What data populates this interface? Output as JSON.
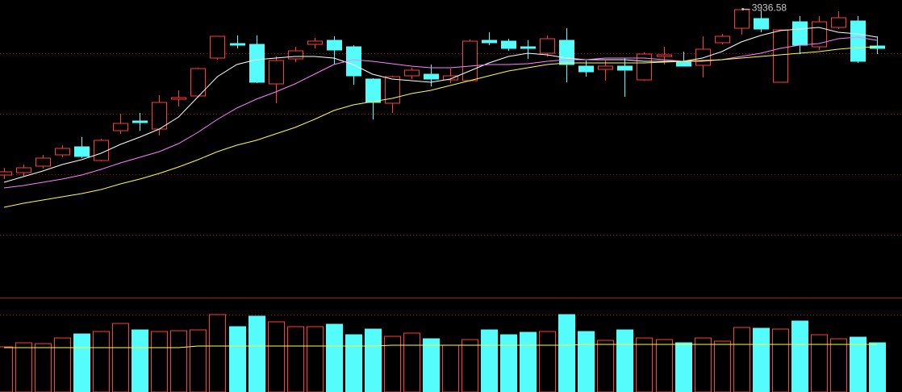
{
  "chart_data": [
    {
      "type": "candlestick",
      "up_color": "#ff3c3c",
      "down_color": "#54fcfc",
      "grid": true,
      "grid_color": "#a01010",
      "ylim": [
        3052.5,
        3965
      ],
      "yticks": [
        3800,
        3612.5,
        3425,
        3237.5
      ],
      "open": [
        3422.5,
        3430,
        3450,
        3485,
        3510,
        3467.5,
        3560,
        3590,
        3565,
        3657.5,
        3667.5,
        3785,
        3830,
        3827.5,
        3705,
        3782.5,
        3827.5,
        3840,
        3820,
        3720,
        3645,
        3730,
        3735,
        3717.5,
        3715,
        3840,
        3837.5,
        3820,
        3800,
        3840,
        3760,
        3750,
        3760,
        3717.5,
        3790,
        3775,
        3762.5,
        3832.5,
        3877.5,
        3907.5,
        3710,
        3897.5,
        3820,
        3880,
        3900,
        3822.5
      ],
      "high": [
        3445,
        3455,
        3485,
        3515,
        3540,
        3535,
        3612.5,
        3615,
        3670,
        3685,
        3755,
        3852.5,
        3855,
        3855,
        3790,
        3820,
        3847.5,
        3852.5,
        3825,
        3722.5,
        3730,
        3755,
        3765,
        3752.5,
        3842.5,
        3865,
        3845,
        3840,
        3855,
        3877.5,
        3777.5,
        3777.5,
        3785,
        3802.5,
        3820,
        3805,
        3852.5,
        3860,
        3936.58,
        3932.5,
        3872.5,
        3915,
        3915,
        3930,
        3915,
        3852.5
      ],
      "low": [
        3410,
        3420,
        3442.5,
        3477.5,
        3475,
        3465,
        3550,
        3560,
        3545,
        3635,
        3662.5,
        3780,
        3815,
        3707.5,
        3645,
        3772.5,
        3815,
        3765,
        3702.5,
        3595,
        3615,
        3720,
        3697.5,
        3707.5,
        3712.5,
        3825,
        3807.5,
        3782.5,
        3790,
        3710,
        3727.5,
        3715,
        3665,
        3715,
        3765,
        3760,
        3725,
        3827.5,
        3857.5,
        3865,
        3710,
        3797.5,
        3810,
        3875,
        3770,
        3797.5
      ],
      "close": [
        3432.5,
        3445,
        3475,
        3505,
        3480,
        3530,
        3582.5,
        3585,
        3647.5,
        3662.5,
        3752.5,
        3852.5,
        3825,
        3710,
        3777.5,
        3807.5,
        3837.5,
        3810,
        3730,
        3647.5,
        3727.5,
        3747.5,
        3720,
        3730,
        3837.5,
        3832.5,
        3815,
        3815,
        3845,
        3765,
        3742.5,
        3760,
        3747.5,
        3797.5,
        3795,
        3760,
        3812.5,
        3852.5,
        3935,
        3875,
        3872.5,
        3825,
        3897.5,
        3910,
        3775,
        3815
      ],
      "lines": [
        {
          "color": "#ffffff",
          "values": [
            3400,
            3417.5,
            3435,
            3455,
            3470,
            3490,
            3517.5,
            3540,
            3565,
            3602.5,
            3665,
            3727.5,
            3765,
            3780,
            3785,
            3790,
            3790,
            3785,
            3765,
            3735,
            3720,
            3715,
            3710,
            3720,
            3745,
            3770,
            3790,
            3800,
            3795,
            3785,
            3780,
            3780,
            3780,
            3775,
            3775,
            3775,
            3785,
            3805,
            3835,
            3855,
            3870,
            3875,
            3880,
            3865,
            3860,
            3850
          ]
        },
        {
          "color": "#ff80ff",
          "values": [
            3382.5,
            3390,
            3400,
            3410,
            3422.5,
            3440,
            3460,
            3477.5,
            3495,
            3520,
            3555,
            3595,
            3630,
            3657.5,
            3680,
            3705,
            3735,
            3765,
            3780,
            3775,
            3767.5,
            3760,
            3755,
            3755,
            3760,
            3765,
            3765,
            3767.5,
            3775,
            3780,
            3780,
            3785,
            3785,
            3785,
            3780,
            3775,
            3775,
            3780,
            3790,
            3800,
            3815,
            3825,
            3830,
            3845,
            3850,
            3840
          ]
        },
        {
          "color": "#ffff40",
          "values": [
            3322.5,
            3335,
            3345,
            3355,
            3365,
            3377.5,
            3395,
            3410,
            3427.5,
            3447.5,
            3470,
            3495,
            3515,
            3530,
            3550,
            3570,
            3595,
            3622.5,
            3640,
            3650,
            3660,
            3675,
            3685,
            3700,
            3715,
            3730,
            3745,
            3755,
            3765,
            3770,
            3770,
            3770,
            3770,
            3770,
            3772.5,
            3775,
            3777.5,
            3780,
            3785,
            3790,
            3795,
            3800,
            3805,
            3812.5,
            3817.5,
            3820
          ]
        }
      ]
    },
    {
      "type": "volume",
      "grid": true,
      "ylim": [
        0,
        116
      ],
      "yticks": [
        96
      ],
      "values": [
        56,
        61,
        60,
        67,
        72,
        75,
        85,
        77,
        75,
        76,
        77,
        96,
        81,
        94,
        87,
        81,
        81,
        84,
        71,
        78,
        69,
        73,
        66,
        58,
        65,
        77,
        71,
        74,
        75,
        96,
        75,
        64,
        77,
        67,
        65,
        61,
        67,
        63,
        80,
        79,
        78,
        88,
        71,
        66,
        68,
        61
      ],
      "lines": [
        {
          "color": "#ffff40",
          "values": [
            55,
            55,
            55,
            55,
            55,
            55,
            55,
            55,
            55,
            55,
            57,
            57,
            57,
            57,
            57,
            57,
            57,
            57,
            57,
            57,
            58,
            58,
            58,
            58,
            58,
            58,
            58,
            58,
            58,
            58,
            59,
            59,
            59,
            59,
            59,
            59,
            59,
            59,
            59,
            59,
            59,
            59,
            59,
            59,
            59,
            59
          ]
        }
      ]
    }
  ]
}
